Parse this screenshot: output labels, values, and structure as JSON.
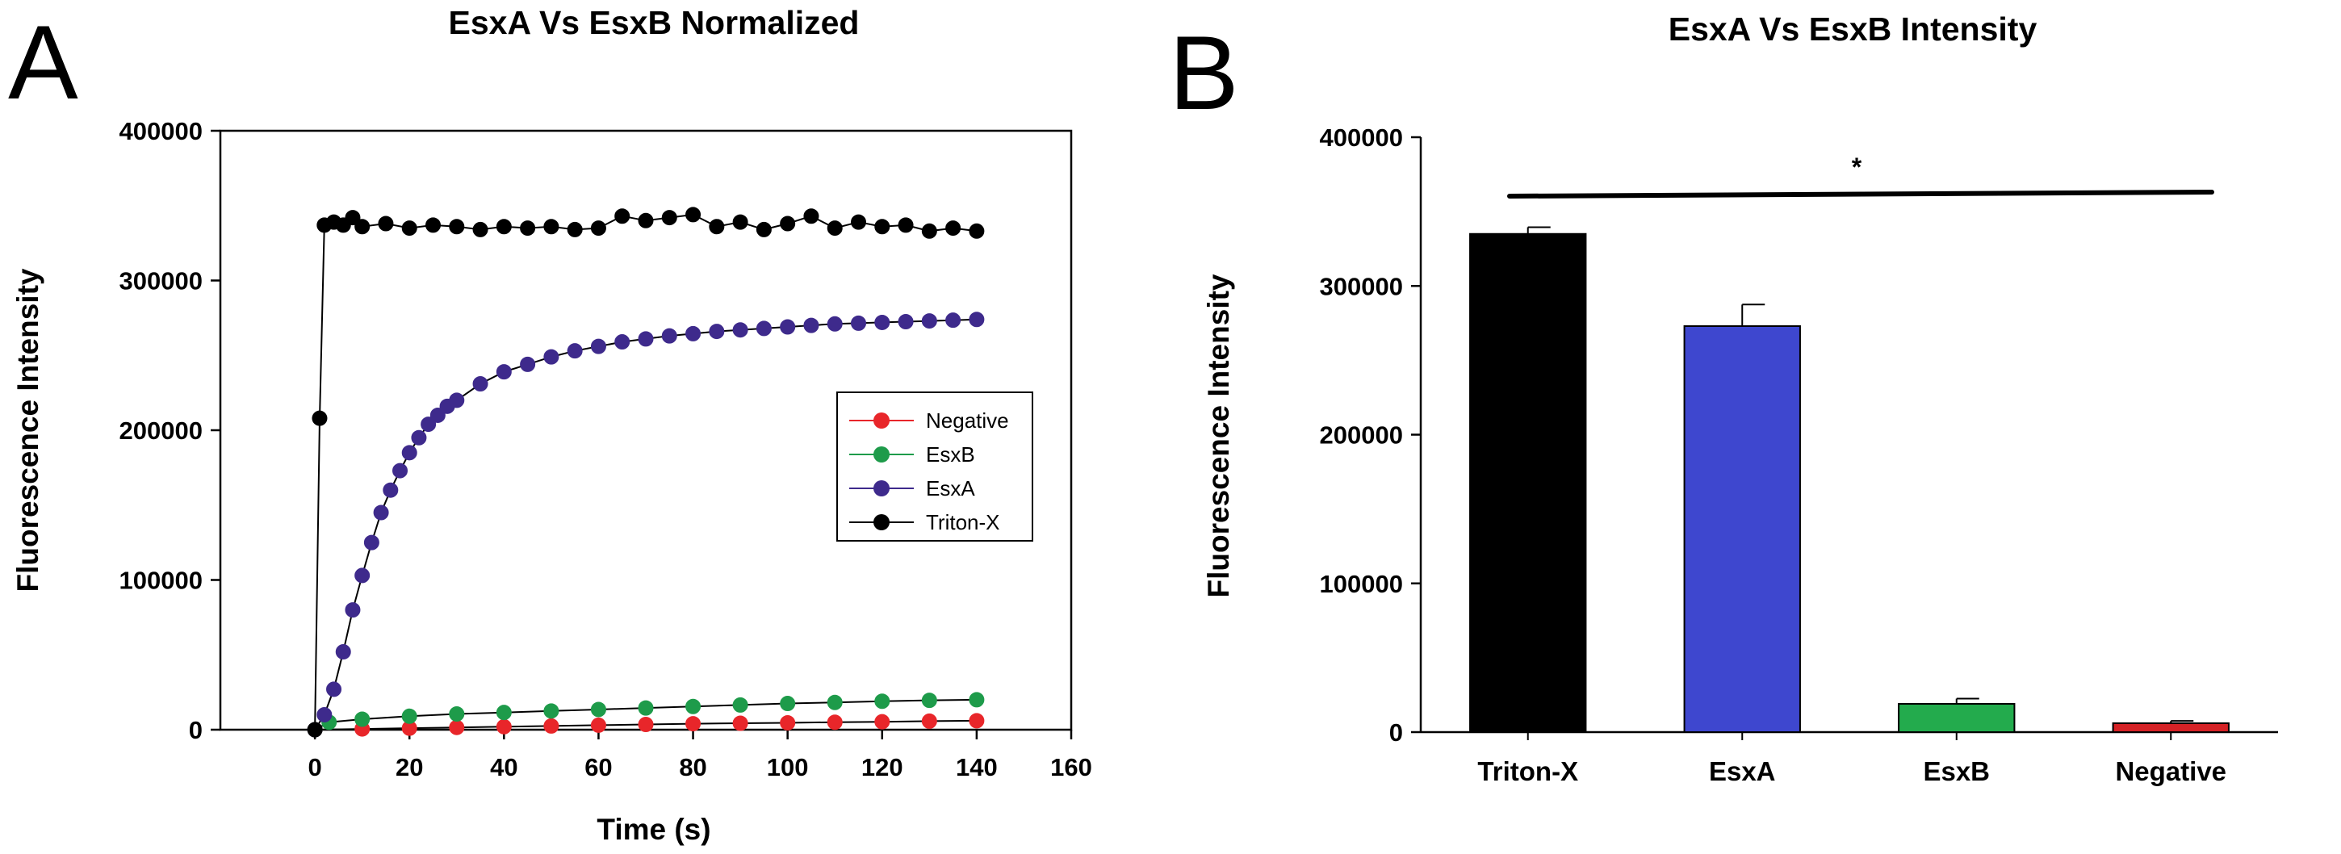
{
  "figure": {
    "panel_a_letter": "A",
    "panel_b_letter": "B"
  },
  "chart_data": [
    {
      "type": "line",
      "title": "EsxA Vs EsxB Normalized",
      "xlabel": "Time (s)",
      "ylabel": "Fluorescence Intensity",
      "xlim": [
        -20,
        160
      ],
      "ylim": [
        0,
        400000
      ],
      "xticks": [
        0,
        20,
        40,
        60,
        80,
        100,
        120,
        140,
        160
      ],
      "yticks": [
        0,
        100000,
        200000,
        300000,
        400000
      ],
      "xtick_labels": [
        "0",
        "20",
        "40",
        "60",
        "80",
        "100",
        "120",
        "140",
        "160"
      ],
      "ytick_labels": [
        "0",
        "100000",
        "200000",
        "300000",
        "400000"
      ],
      "grid": false,
      "legend_position": "middle-right",
      "series": [
        {
          "name": "Negative",
          "color": "#e8262a",
          "x": [
            0,
            10,
            20,
            30,
            40,
            50,
            60,
            70,
            80,
            90,
            100,
            110,
            120,
            130,
            140
          ],
          "y": [
            0,
            500,
            1000,
            1500,
            2000,
            2500,
            3000,
            3500,
            4000,
            4300,
            4600,
            5000,
            5300,
            5700,
            6000
          ]
        },
        {
          "name": "EsxB",
          "color": "#1e9b4a",
          "x": [
            0,
            3,
            10,
            20,
            30,
            40,
            50,
            60,
            70,
            80,
            90,
            100,
            110,
            120,
            130,
            140
          ],
          "y": [
            0,
            5000,
            7000,
            9000,
            10500,
            11500,
            12500,
            13500,
            14500,
            15500,
            16500,
            17500,
            18200,
            19000,
            19600,
            20000
          ]
        },
        {
          "name": "EsxA",
          "color": "#3e2a8c",
          "x": [
            0,
            2,
            4,
            6,
            8,
            10,
            12,
            14,
            16,
            18,
            20,
            22,
            24,
            26,
            28,
            30,
            35,
            40,
            45,
            50,
            55,
            60,
            65,
            70,
            75,
            80,
            85,
            90,
            95,
            100,
            105,
            110,
            115,
            120,
            125,
            130,
            135,
            140
          ],
          "y": [
            0,
            10000,
            27000,
            52000,
            80000,
            103000,
            125000,
            145000,
            160000,
            173000,
            185000,
            195000,
            204000,
            210000,
            216000,
            220000,
            231000,
            239000,
            244000,
            249000,
            253000,
            256000,
            259000,
            261000,
            263000,
            264500,
            266000,
            267000,
            268000,
            269000,
            270000,
            271000,
            271500,
            272000,
            272500,
            273000,
            273500,
            274000
          ]
        },
        {
          "name": "Triton-X",
          "color": "#000000",
          "x": [
            0,
            1,
            2,
            4,
            6,
            8,
            10,
            15,
            20,
            25,
            30,
            35,
            40,
            45,
            50,
            55,
            60,
            65,
            70,
            75,
            80,
            85,
            90,
            95,
            100,
            105,
            110,
            115,
            120,
            125,
            130,
            135,
            140
          ],
          "y": [
            0,
            208000,
            337000,
            339000,
            337000,
            342000,
            336000,
            338000,
            335000,
            337000,
            336000,
            334000,
            336000,
            335000,
            336000,
            334000,
            335000,
            343000,
            340000,
            342000,
            344000,
            336000,
            339000,
            334000,
            338000,
            343000,
            335000,
            339000,
            336000,
            337000,
            333000,
            335000,
            333000
          ]
        }
      ]
    },
    {
      "type": "bar",
      "title": "EsxA Vs EsxB Intensity",
      "xlabel": "",
      "ylabel": "Fluorescence Intensity",
      "ylim": [
        0,
        400000
      ],
      "yticks": [
        0,
        100000,
        200000,
        300000,
        400000
      ],
      "ytick_labels": [
        "0",
        "100000",
        "200000",
        "300000",
        "400000"
      ],
      "grid": false,
      "categories": [
        "Triton-X",
        "EsxA",
        "EsxB",
        "Negative"
      ],
      "values": [
        335000,
        273000,
        19000,
        6000
      ],
      "errors": [
        4500,
        14500,
        3500,
        1500
      ],
      "colors": [
        "#000000",
        "#3e47cf",
        "#23ab4d",
        "#d52226"
      ],
      "significance": {
        "label": "*",
        "value": 362000
      }
    }
  ]
}
